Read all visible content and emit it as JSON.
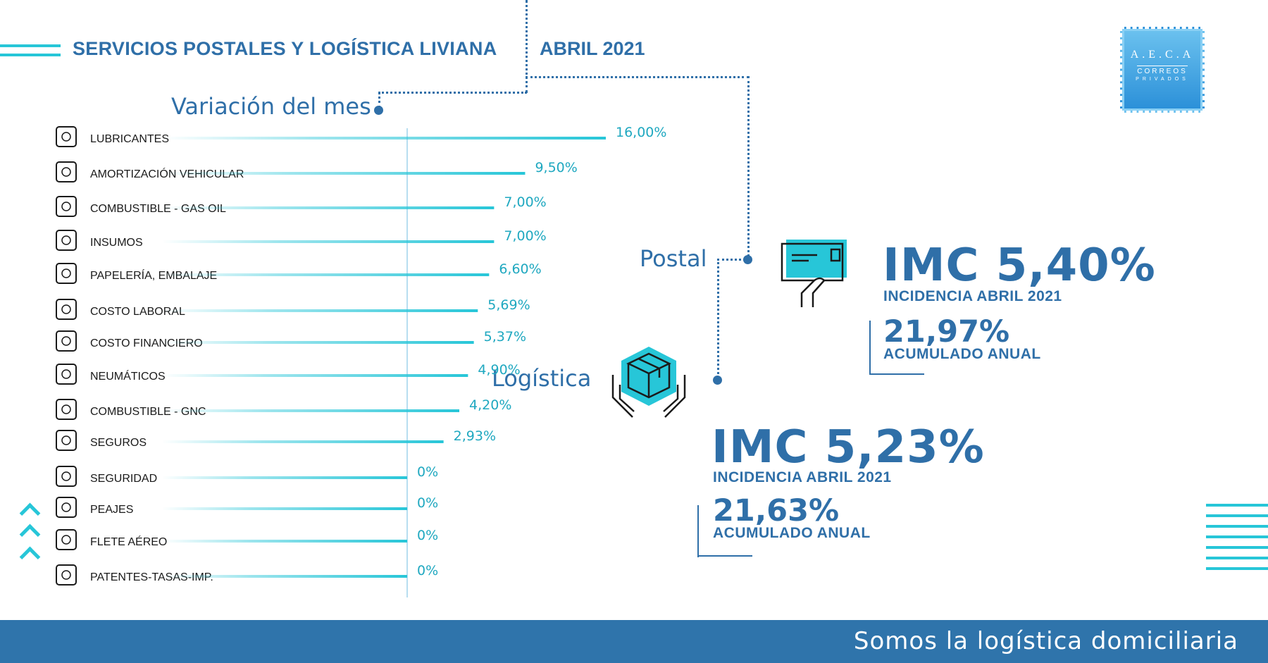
{
  "header": {
    "title": "SERVICIOS POSTALES Y LOGÍSTICA LIVIANA",
    "date": "ABRIL 2021"
  },
  "logo": {
    "line1": "A.E.C.A",
    "line2": "CORREOS",
    "line3": "PRIVADOS"
  },
  "sections": {
    "variacion": "Variación del mes",
    "postal": "Postal",
    "logistica": "Logística"
  },
  "postal": {
    "imc": "IMC 5,40%",
    "incidencia": "INCIDENCIA ABRIL 2021",
    "acumulado_value": "21,97%",
    "acumulado_label": "ACUMULADO ANUAL"
  },
  "logistica": {
    "imc": "IMC 5,23%",
    "incidencia": "INCIDENCIA ABRIL 2021",
    "acumulado_value": "21,63%",
    "acumulado_label": "ACUMULADO ANUAL"
  },
  "footer": {
    "text": "Somos la logística domiciliaria"
  },
  "colors": {
    "primary": "#2f6fa8",
    "accent": "#27c6d8",
    "footer_bg": "#2f74ab"
  },
  "chart_data": {
    "type": "bar",
    "orientation": "horizontal",
    "categories": [
      "LUBRICANTES",
      "AMORTIZACIÓN VEHICULAR",
      "COMBUSTIBLE - GAS OIL",
      "INSUMOS",
      "PAPELERÍA, EMBALAJE",
      "COSTO LABORAL",
      "COSTO FINANCIERO",
      "NEUMÁTICOS",
      "COMBUSTIBLE - GNC",
      "SEGUROS",
      "SEGURIDAD",
      "PEAJES",
      "FLETE AÉREO",
      "PATENTES-TASAS-IMP."
    ],
    "values": [
      16.0,
      9.5,
      7.0,
      7.0,
      6.6,
      5.69,
      5.37,
      4.9,
      4.2,
      2.93,
      0,
      0,
      0,
      0
    ],
    "value_labels": [
      "16,00%",
      "9,50%",
      "7,00%",
      "7,00%",
      "6,60%",
      "5,69%",
      "5,37%",
      "4,90%",
      "4,20%",
      "2,93%",
      "0%",
      "0%",
      "0%",
      "0%"
    ],
    "icons": [
      "oil-can-icon",
      "truck-icon",
      "fuel-pump-icon",
      "clipboard-check-icon",
      "package-icon",
      "money-coins-icon",
      "pie-chart-icon",
      "tire-icon",
      "gas-cylinder-icon",
      "shield-box-icon",
      "guard-icon",
      "toll-icon",
      "airplane-cloud-icon",
      "license-plate-icon"
    ],
    "title": "Variación del mes",
    "xlim": [
      0,
      16
    ],
    "grid": false,
    "legend": "none"
  }
}
